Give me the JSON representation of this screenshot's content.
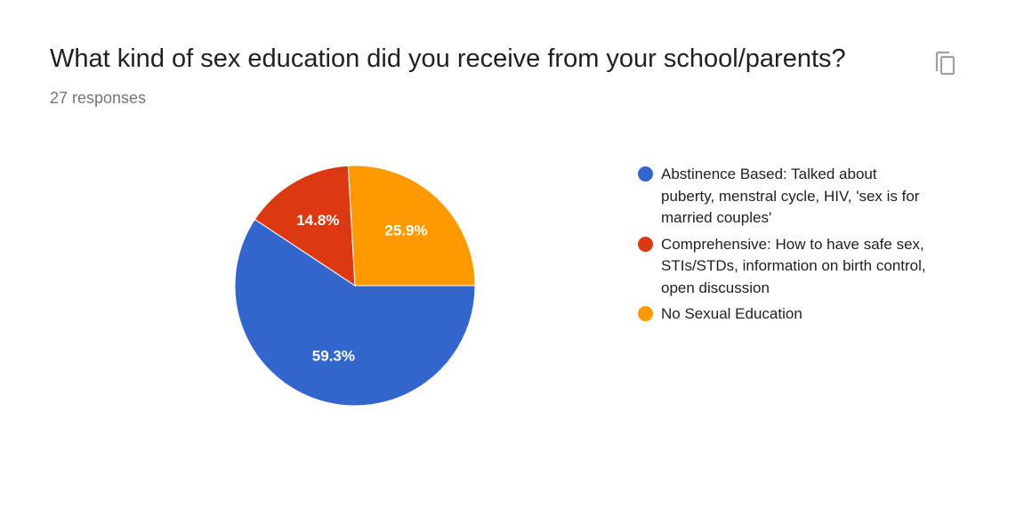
{
  "header": {
    "title": "What kind of sex education did you receive from your school/parents?",
    "responses": "27 responses",
    "copy_icon": "copy-icon"
  },
  "colors": {
    "abstinence": "#3366cc",
    "comprehensive": "#dc3912",
    "none": "#ff9900"
  },
  "chart_data": {
    "type": "pie",
    "title": "What kind of sex education did you receive from your school/parents?",
    "slices": [
      {
        "label": "Abstinence Based: Talked about puberty, menstral cycle, HIV, 'sex is for married couples'",
        "value": 59.3,
        "display": "59.3%",
        "color": "#3366cc"
      },
      {
        "label": "Comprehensive: How to have safe sex, STIs/STDs, information on birth control, open discussion",
        "value": 14.8,
        "display": "14.8%",
        "color": "#dc3912"
      },
      {
        "label": "No Sexual Education",
        "value": 25.9,
        "display": "25.9%",
        "color": "#ff9900"
      }
    ],
    "legend_position": "right"
  },
  "legend": {
    "items": [
      {
        "label": "Abstinence Based: Talked about puberty, menstral cycle, HIV, 'sex is for married couples'"
      },
      {
        "label": "Comprehensive: How to have safe sex, STIs/STDs, information on birth control, open discussion"
      },
      {
        "label": "No Sexual Education"
      }
    ]
  }
}
